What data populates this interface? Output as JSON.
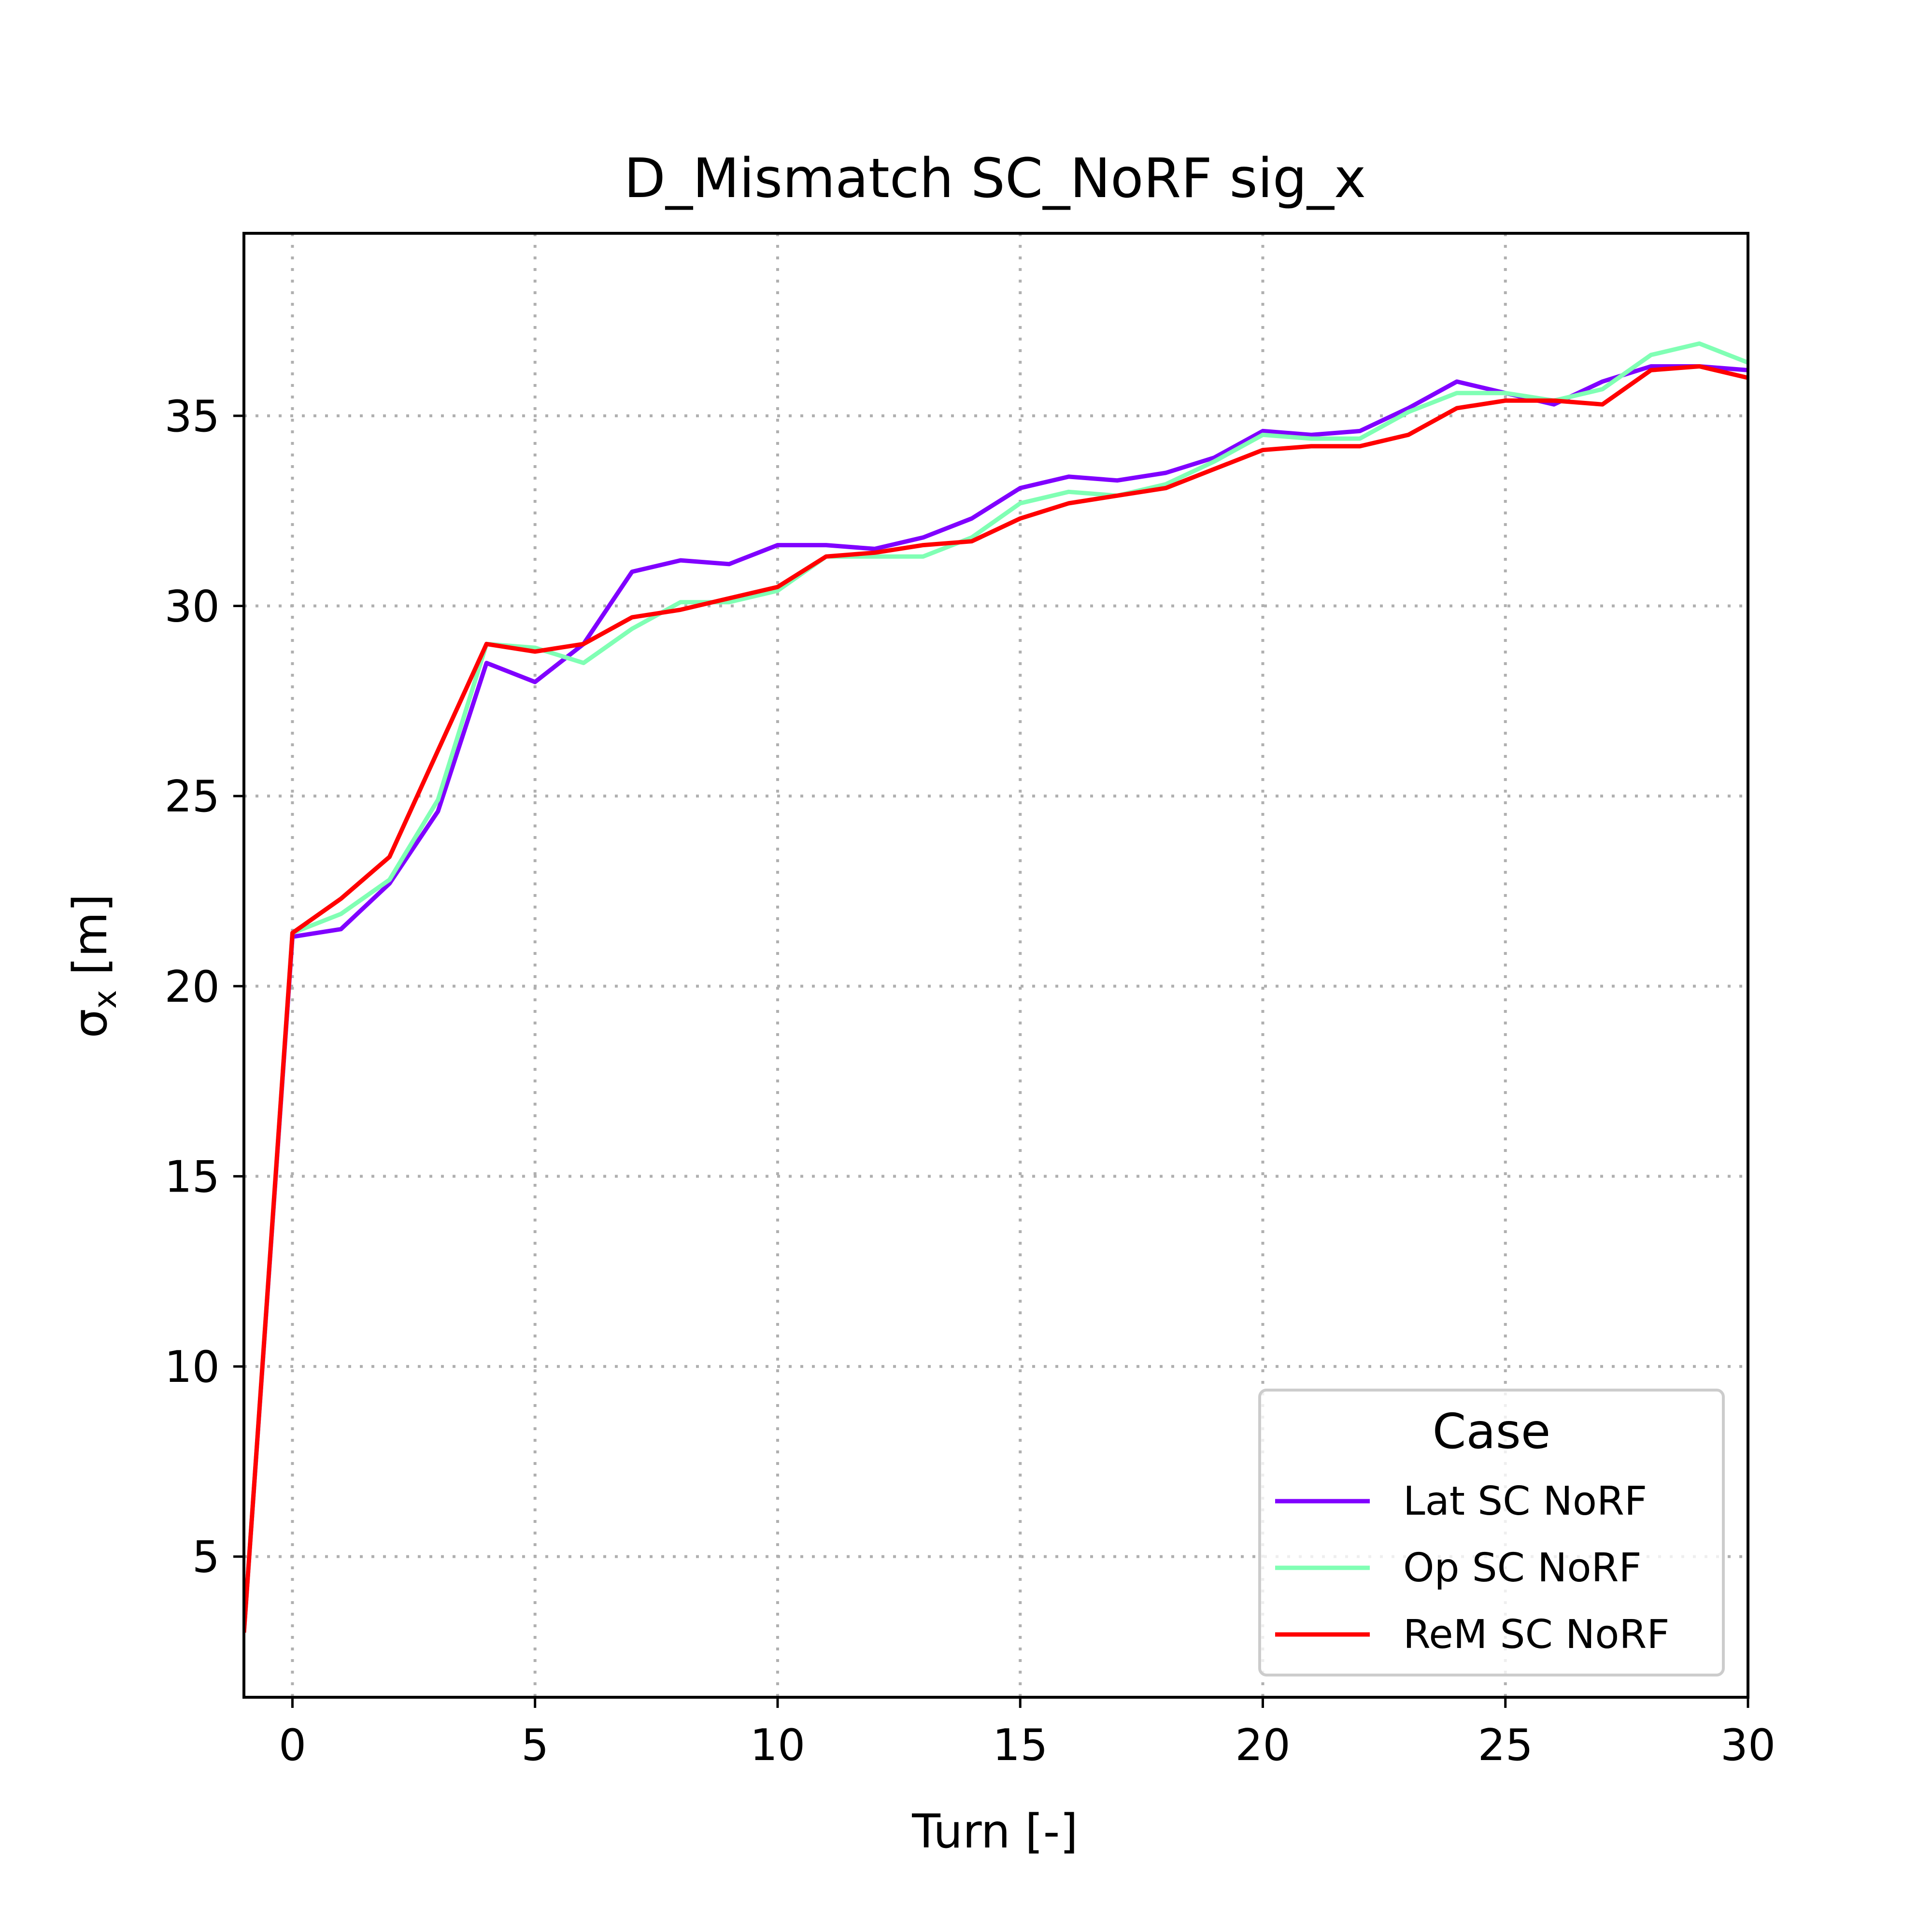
{
  "chart_data": {
    "type": "line",
    "title": "D_Mismatch SC_NoRF sig_x",
    "xlabel": "Turn [-]",
    "ylabel": "σx [m]",
    "ylabel_main": "σ",
    "ylabel_sub": "x",
    "ylabel_unit": " [m]",
    "xlim": [
      -1,
      30
    ],
    "ylim": [
      1.3,
      39.8
    ],
    "xticks": [
      0,
      5,
      10,
      15,
      20,
      25,
      30
    ],
    "yticks": [
      5,
      10,
      15,
      20,
      25,
      30,
      35
    ],
    "grid": true,
    "legend": {
      "title": "Case",
      "placement": "lower right"
    },
    "x": [
      -1,
      0,
      1,
      2,
      3,
      4,
      5,
      6,
      7,
      8,
      9,
      10,
      11,
      12,
      13,
      14,
      15,
      16,
      17,
      18,
      19,
      20,
      21,
      22,
      23,
      24,
      25,
      26,
      27,
      28,
      29,
      30
    ],
    "series": [
      {
        "name": "Lat SC NoRF",
        "color": "#8000ff",
        "values": [
          3.0,
          21.3,
          21.5,
          22.7,
          24.6,
          28.5,
          28.0,
          29.0,
          30.9,
          31.2,
          31.1,
          31.6,
          31.6,
          31.5,
          31.8,
          32.3,
          33.1,
          33.4,
          33.3,
          33.5,
          33.9,
          34.6,
          34.5,
          34.6,
          35.2,
          35.9,
          35.6,
          35.3,
          35.9,
          36.3,
          36.3,
          36.2
        ]
      },
      {
        "name": "Op SC NoRF",
        "color": "#80ffb4",
        "values": [
          3.0,
          21.4,
          21.9,
          22.8,
          24.9,
          29.0,
          28.9,
          28.5,
          29.4,
          30.1,
          30.1,
          30.4,
          31.3,
          31.3,
          31.3,
          31.8,
          32.7,
          33.0,
          32.9,
          33.2,
          33.8,
          34.5,
          34.4,
          34.4,
          35.1,
          35.6,
          35.6,
          35.4,
          35.7,
          36.6,
          36.9,
          36.4
        ]
      },
      {
        "name": "ReM SC NoRF",
        "color": "#ff0000",
        "values": [
          3.0,
          21.4,
          22.3,
          23.4,
          26.2,
          29.0,
          28.8,
          29.0,
          29.7,
          29.9,
          30.2,
          30.5,
          31.3,
          31.4,
          31.6,
          31.7,
          32.3,
          32.7,
          32.9,
          33.1,
          33.6,
          34.1,
          34.2,
          34.2,
          34.5,
          35.2,
          35.4,
          35.4,
          35.3,
          36.2,
          36.3,
          36.0
        ]
      }
    ]
  }
}
